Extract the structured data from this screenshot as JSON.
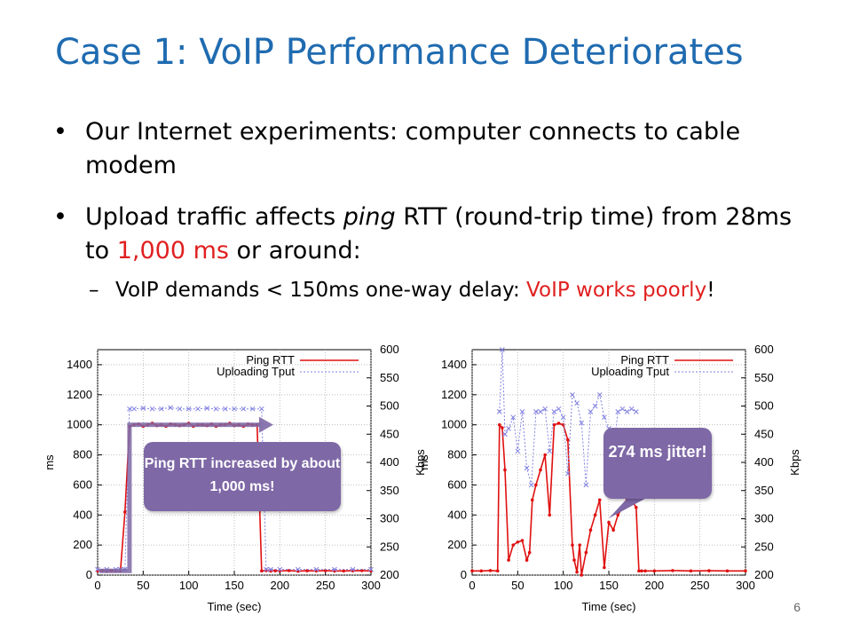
{
  "slide": {
    "title": "Case 1: VoIP Performance Deteriorates",
    "bullet1": "Our Internet experiments: computer connects to cable modem",
    "bullet2_a": "Upload traffic affects ",
    "bullet2_ping": "ping",
    "bullet2_b": " RTT (round-trip time) from 28ms to ",
    "bullet2_red": "1,000 ms",
    "bullet2_c": " or around:",
    "sub_a": "VoIP demands < 150ms one-way delay:  ",
    "sub_red": "VoIP works poorly",
    "sub_b": "!",
    "bullet_glyph": "•",
    "dash_glyph": "–",
    "page_number": "6",
    "callout_left": "Ping RTT increased by about 1,000 ms!",
    "callout_right": "274 ms jitter!"
  },
  "colors": {
    "title": "#1f6bb0",
    "accent_red": "#e02020",
    "callout": "#7e68a6",
    "rtt": "#e01010",
    "tput": "#8080e0"
  },
  "chart_data": [
    {
      "type": "line",
      "xlabel": "Time (sec)",
      "ylabel": "ms",
      "y2label": "Kbps",
      "xlim": [
        0,
        300
      ],
      "ylim": [
        0,
        1500
      ],
      "y2lim": [
        200,
        600
      ],
      "xticks": [
        0,
        50,
        100,
        150,
        200,
        250,
        300
      ],
      "yticks": [
        0,
        200,
        400,
        600,
        800,
        1000,
        1200,
        1400
      ],
      "y2ticks": [
        200,
        250,
        300,
        350,
        400,
        450,
        500,
        550,
        600
      ],
      "series": [
        {
          "name": "Ping RTT",
          "axis": "left",
          "x": [
            0,
            5,
            10,
            15,
            20,
            25,
            30,
            35,
            40,
            45,
            50,
            55,
            60,
            65,
            70,
            75,
            80,
            85,
            90,
            95,
            100,
            105,
            110,
            115,
            120,
            125,
            130,
            135,
            140,
            145,
            150,
            155,
            160,
            165,
            170,
            175,
            180,
            185,
            190,
            195,
            200,
            210,
            220,
            230,
            240,
            250,
            260,
            270,
            280,
            290,
            300
          ],
          "y": [
            28,
            30,
            26,
            29,
            28,
            27,
            420,
            990,
            1000,
            1005,
            990,
            1000,
            1010,
            995,
            1000,
            990,
            1005,
            1000,
            995,
            1000,
            1010,
            990,
            1000,
            1000,
            995,
            1005,
            990,
            1000,
            1000,
            1010,
            995,
            1000,
            990,
            1005,
            1000,
            1000,
            28,
            30,
            27,
            29,
            28,
            30,
            26,
            29,
            28,
            30,
            27,
            28,
            29,
            30,
            28
          ]
        },
        {
          "name": "Uploading Tput",
          "axis": "right",
          "x": [
            0,
            10,
            20,
            25,
            30,
            35,
            40,
            50,
            60,
            70,
            80,
            90,
            100,
            110,
            120,
            130,
            140,
            150,
            160,
            170,
            180,
            185,
            190,
            200,
            220,
            240,
            260,
            280,
            300
          ],
          "y": [
            210,
            210,
            210,
            210,
            210,
            495,
            495,
            496,
            495,
            495,
            497,
            495,
            495,
            495,
            496,
            495,
            495,
            495,
            495,
            495,
            495,
            210,
            210,
            210,
            210,
            210,
            210,
            210,
            210
          ]
        }
      ]
    },
    {
      "type": "line",
      "xlabel": "Time (sec)",
      "ylabel": "ms",
      "y2label": "Kbps",
      "xlim": [
        0,
        300
      ],
      "ylim": [
        0,
        1500
      ],
      "y2lim": [
        200,
        600
      ],
      "xticks": [
        0,
        50,
        100,
        150,
        200,
        250,
        300
      ],
      "yticks": [
        0,
        200,
        400,
        600,
        800,
        1000,
        1200,
        1400
      ],
      "y2ticks": [
        200,
        250,
        300,
        350,
        400,
        450,
        500,
        550,
        600
      ],
      "series": [
        {
          "name": "Ping RTT",
          "axis": "left",
          "x": [
            0,
            10,
            20,
            28,
            30,
            33,
            36,
            40,
            45,
            50,
            55,
            60,
            63,
            66,
            70,
            75,
            80,
            85,
            90,
            95,
            100,
            105,
            110,
            112,
            115,
            118,
            120,
            125,
            130,
            135,
            140,
            145,
            150,
            155,
            160,
            165,
            170,
            175,
            180,
            183,
            186,
            190,
            200,
            220,
            240,
            260,
            280,
            300
          ],
          "y": [
            28,
            28,
            30,
            28,
            1000,
            980,
            700,
            100,
            200,
            220,
            230,
            100,
            150,
            500,
            600,
            700,
            800,
            400,
            1000,
            1010,
            1000,
            900,
            200,
            100,
            20,
            200,
            0,
            150,
            300,
            400,
            500,
            50,
            350,
            300,
            400,
            450,
            500,
            500,
            450,
            28,
            28,
            28,
            28,
            30,
            28,
            29,
            28,
            28
          ]
        },
        {
          "name": "Uploading Tput",
          "axis": "right",
          "x": [
            30,
            33,
            36,
            40,
            45,
            50,
            55,
            60,
            65,
            70,
            75,
            80,
            85,
            90,
            95,
            100,
            105,
            110,
            115,
            120,
            125,
            130,
            135,
            140,
            145,
            150,
            155,
            160,
            165,
            170,
            175,
            180
          ],
          "y": [
            490,
            600,
            450,
            460,
            480,
            420,
            490,
            390,
            360,
            490,
            490,
            495,
            420,
            490,
            495,
            480,
            380,
            520,
            505,
            470,
            360,
            490,
            500,
            520,
            480,
            460,
            420,
            490,
            495,
            490,
            495,
            490
          ]
        }
      ]
    }
  ]
}
